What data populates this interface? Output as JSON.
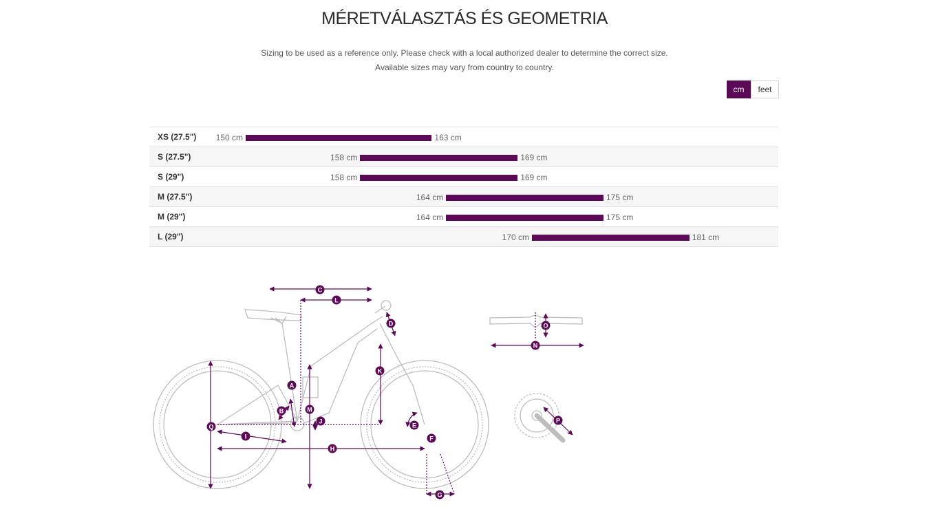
{
  "header": {
    "title": "MÉRETVÁLASZTÁS ÉS GEOMETRIA",
    "note_line1": "Sizing to be used as a reference only. Please check with a local authorized dealer to determine the correct size.",
    "note_line2": "Available sizes may vary from country to country."
  },
  "units": {
    "cm_label": "cm",
    "feet_label": "feet",
    "selected": "cm"
  },
  "colors": {
    "accent": "#5c0a58",
    "bike_line": "#bdbdbd"
  },
  "sizes": [
    {
      "label": "XS (27.5\")",
      "min": 150,
      "max": 163,
      "min_text": "150 cm",
      "max_text": "163 cm"
    },
    {
      "label": "S (27.5\")",
      "min": 158,
      "max": 169,
      "min_text": "158 cm",
      "max_text": "169 cm"
    },
    {
      "label": "S (29\")",
      "min": 158,
      "max": 169,
      "min_text": "158 cm",
      "max_text": "169 cm"
    },
    {
      "label": "M (27.5\")",
      "min": 164,
      "max": 175,
      "min_text": "164 cm",
      "max_text": "175 cm"
    },
    {
      "label": "M (29\")",
      "min": 164,
      "max": 175,
      "min_text": "164 cm",
      "max_text": "175 cm"
    },
    {
      "label": "L (29\")",
      "min": 170,
      "max": 181,
      "min_text": "170 cm",
      "max_text": "181 cm"
    }
  ],
  "geometry_labels": [
    "A",
    "B",
    "C",
    "D",
    "E",
    "F",
    "G",
    "H",
    "I",
    "J",
    "K",
    "L",
    "M",
    "N",
    "O",
    "P",
    "Q"
  ]
}
